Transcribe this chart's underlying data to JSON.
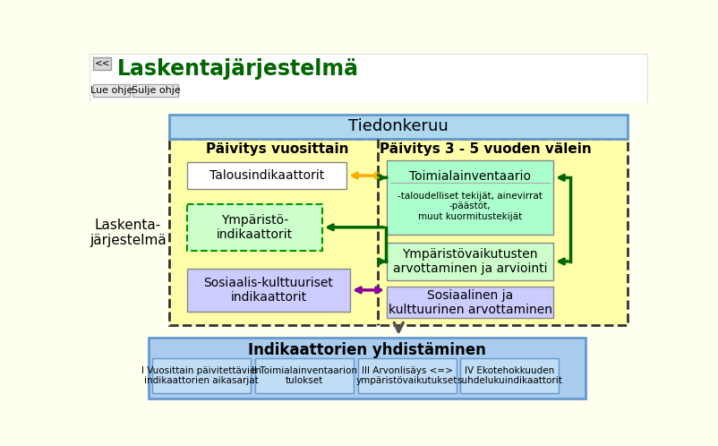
{
  "title": "Laskentajärjestelmä",
  "bg_color": "#fffff0",
  "header_bg": "#ffffff",
  "tiedonkeruu_text": "Tiedonkeruu",
  "tiedonkeruu_bg": "#add8f0",
  "paivitys_vuosittain": "Päivitys vuosittain",
  "paivitys_35": "Päivitys 3 - 5 vuoden välein",
  "laskenta_text": "Laskenta-\njärjestelmä",
  "talous_text": "Talousindikaattorit",
  "ymparisto_text": "Ympäristö-\nindikaattorit",
  "sosiaalis_text": "Sosiaalis-kulttuuriset\nindikaattorit",
  "toimiala_title": "Toimialainventaario",
  "toimiala_sub": "-taloudelliset tekijät, ainevirrat\n-päästöt,\nmuut kuormitustekijät",
  "ymparistovaikutus_text": "Ympäristövaikutusten\narvottaminen ja arviointi",
  "sosiaalinen_text": "Sosiaalinen ja\nkulttuurinen arvottaminen",
  "yhdistaminen_text": "Indikaattorien yhdistäminen",
  "sub1_text": "I Vuosittain päivitettävien\nindikaattorien aikasarjat",
  "sub2_text": "II Toimialainventaarion\ntulokset",
  "sub3_text": "III Arvonlisäys <=>\nympäristövaikutukset",
  "sub4_text": "IV Ekotehokkuuden\nsuhdelukuindikaattorit",
  "talous_bg": "#ffffff",
  "ymparisto_bg": "#ccffcc",
  "sosiaalis_bg": "#ccccff",
  "toimiala_bg": "#aaffcc",
  "ymparistovaikutus_bg": "#ccffcc",
  "sosiaalinen_bg": "#ccccff",
  "yhdistaminen_bg": "#aaccee",
  "sub_bg": "#c0ddf5",
  "dashed_area_bg": "#ffffaa",
  "orange_arrow": "#ffaa00",
  "green_arrow": "#006600",
  "purple_arrow": "#880099",
  "dark_arrow": "#555555"
}
